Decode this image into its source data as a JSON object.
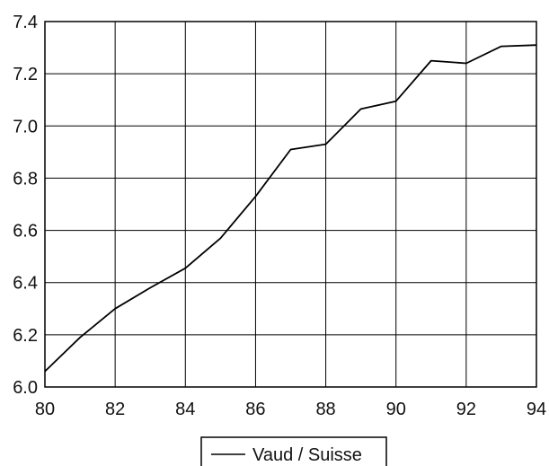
{
  "chart_data": {
    "type": "line",
    "title": "",
    "xlabel": "",
    "ylabel": "",
    "xlim": [
      80,
      94
    ],
    "ylim": [
      6.0,
      7.4
    ],
    "x_ticks": [
      "80",
      "82",
      "84",
      "86",
      "88",
      "90",
      "92",
      "94"
    ],
    "y_ticks": [
      "6.0",
      "6.2",
      "6.4",
      "6.6",
      "6.8",
      "7.0",
      "7.2",
      "7.4"
    ],
    "grid": true,
    "legend_position": "bottom-center",
    "series": [
      {
        "name": "Vaud / Suisse",
        "color": "#000000",
        "x": [
          80,
          81,
          82,
          83,
          84,
          85,
          86,
          87,
          88,
          89,
          90,
          91,
          92,
          93,
          94
        ],
        "y": [
          6.06,
          6.19,
          6.3,
          6.38,
          6.455,
          6.57,
          6.73,
          6.91,
          6.93,
          7.065,
          7.095,
          7.25,
          7.24,
          7.305,
          7.31
        ]
      }
    ]
  }
}
